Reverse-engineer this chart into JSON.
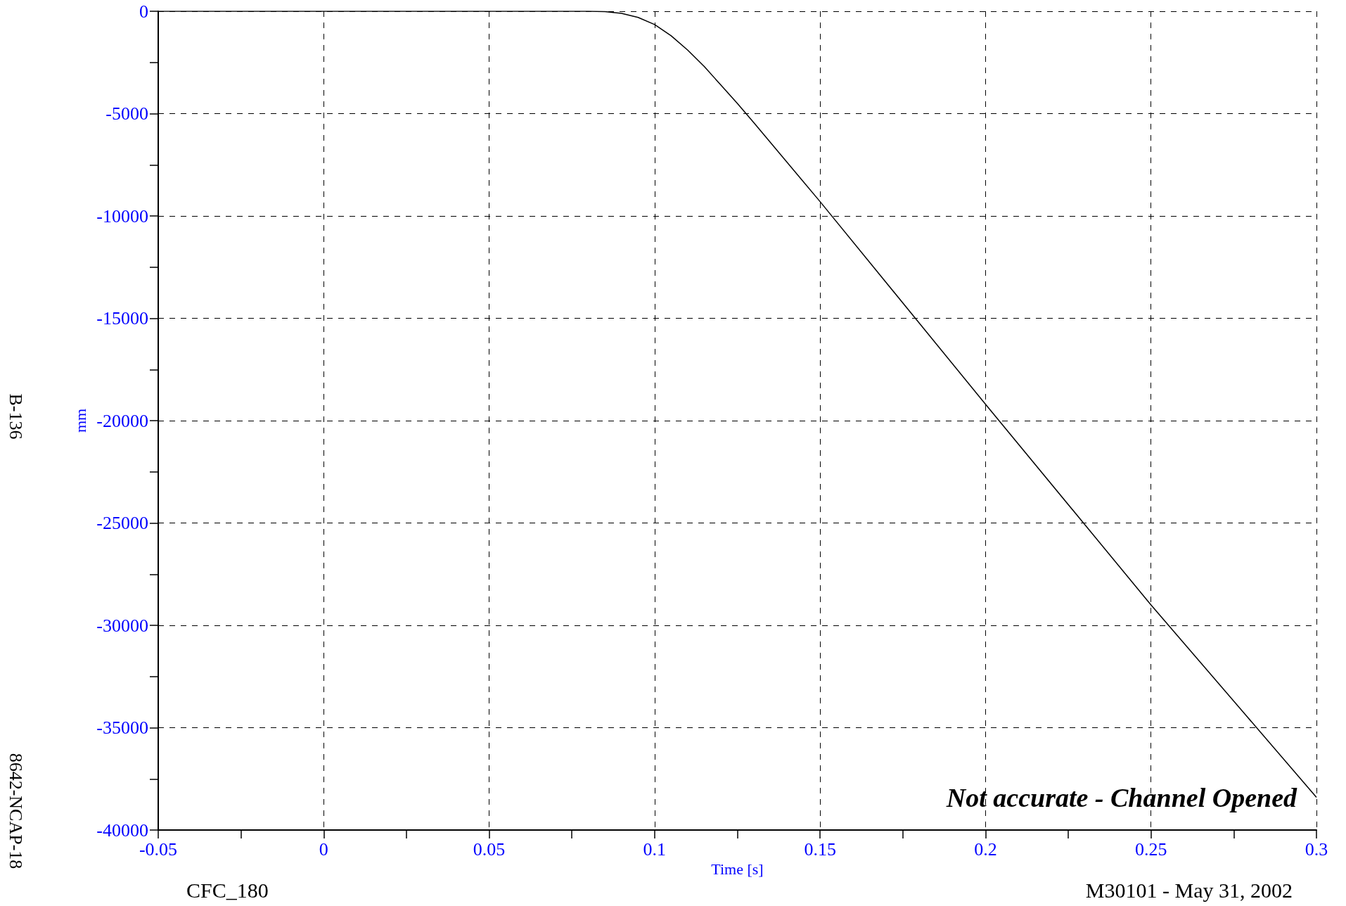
{
  "chart_data": {
    "type": "line",
    "xlabel": "Time [s]",
    "ylabel": "mm",
    "x": [
      -0.05,
      0,
      0.05,
      0.08,
      0.085,
      0.09,
      0.095,
      0.1,
      0.105,
      0.11,
      0.115,
      0.12,
      0.125,
      0.13,
      0.15,
      0.2,
      0.25,
      0.3
    ],
    "series": [
      {
        "color": "#000000",
        "values": [
          0,
          0,
          0,
          0,
          -20,
          -100,
          -300,
          -650,
          -1200,
          -1900,
          -2700,
          -3600,
          -4500,
          -5450,
          -9300,
          -19200,
          -29000,
          -38400
        ]
      }
    ],
    "xlim": [
      -0.05,
      0.3
    ],
    "xticks": [
      -0.05,
      {
        "value": -0.025,
        "label": null
      },
      0,
      {
        "value": 0.025,
        "label": null
      },
      0.05,
      {
        "value": 0.075,
        "label": null
      },
      0.1,
      {
        "value": 0.125,
        "label": null
      },
      0.15,
      {
        "value": 0.175,
        "label": null
      },
      0.2,
      {
        "value": 0.225,
        "label": null
      },
      0.25,
      {
        "value": 0.275,
        "label": null
      },
      0.3
    ],
    "ylim": [
      -40000,
      0
    ],
    "yticks": [
      -40000,
      {
        "value": -37500,
        "label": null
      },
      -35000,
      {
        "value": -32500,
        "label": null
      },
      -30000,
      {
        "value": -27500,
        "label": null
      },
      -25000,
      {
        "value": -22500,
        "label": null
      },
      -20000,
      {
        "value": -17500,
        "label": null
      },
      -15000,
      {
        "value": -12500,
        "label": null
      },
      -10000,
      {
        "value": -7500,
        "label": null
      },
      -5000,
      {
        "value": -2500,
        "label": null
      },
      0
    ],
    "grid": true,
    "marker": "none",
    "line_style": "solid",
    "annotations": [
      "Not accurate - Channel Opened",
      "CFC_180",
      "M30101 - May 31, 2002",
      "B-136",
      "8642-NCAP-18"
    ]
  }
}
